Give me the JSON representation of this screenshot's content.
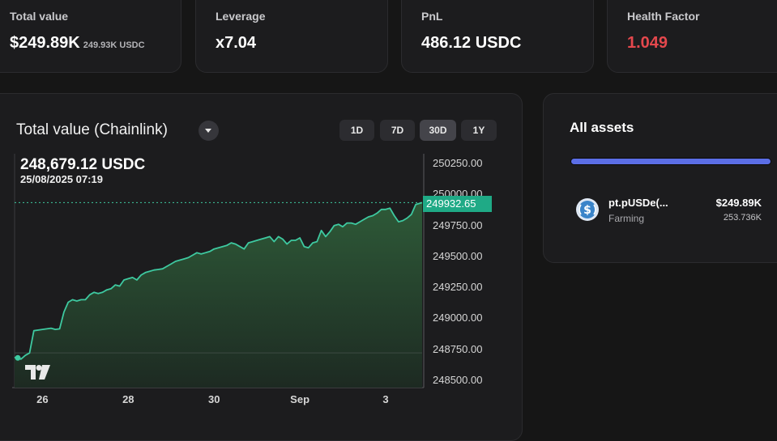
{
  "stats": {
    "total_value": {
      "label": "Total value",
      "value": "$249.89K",
      "sub": "249.93K USDC"
    },
    "leverage": {
      "label": "Leverage",
      "value": "x7.04"
    },
    "pnl": {
      "label": "PnL",
      "value": "486.12 USDC"
    },
    "health": {
      "label": "Health Factor",
      "value": "1.049",
      "color": "#e5484d"
    }
  },
  "chart_panel": {
    "title": "Total value (Chainlink)",
    "ranges": [
      "1D",
      "7D",
      "30D",
      "1Y"
    ],
    "active_range": "30D",
    "hover_value": "248,679.12 USDC",
    "hover_date": "25/08/2025 07:19",
    "current_price_tag": "249932.65"
  },
  "chart_data": {
    "type": "area",
    "ylim": [
      248440,
      250330
    ],
    "yticks": [
      "250250.00",
      "250000.00",
      "249750.00",
      "249500.00",
      "249250.00",
      "249000.00",
      "248750.00",
      "248500.00"
    ],
    "ytick_values": [
      250250,
      250000,
      249750,
      249500,
      249250,
      249000,
      248750,
      248500
    ],
    "xticks": [
      "26",
      "28",
      "30",
      "Sep",
      "3"
    ],
    "xtick_positions": [
      1,
      3,
      5,
      7,
      9
    ],
    "xlim": [
      0.35,
      9.85
    ],
    "baseline": 248720,
    "series": [
      {
        "values": [
          [
            0.35,
            248680
          ],
          [
            0.4,
            248690
          ],
          [
            0.5,
            248670
          ],
          [
            0.6,
            248700
          ],
          [
            0.7,
            248720
          ],
          [
            0.8,
            248900
          ],
          [
            1.0,
            248910
          ],
          [
            1.2,
            248920
          ],
          [
            1.3,
            248910
          ],
          [
            1.4,
            248915
          ],
          [
            1.5,
            249050
          ],
          [
            1.6,
            249130
          ],
          [
            1.7,
            249150
          ],
          [
            1.8,
            249140
          ],
          [
            1.9,
            249150
          ],
          [
            2.0,
            249150
          ],
          [
            2.1,
            249190
          ],
          [
            2.2,
            249210
          ],
          [
            2.3,
            249200
          ],
          [
            2.4,
            249210
          ],
          [
            2.5,
            249230
          ],
          [
            2.6,
            249240
          ],
          [
            2.7,
            249270
          ],
          [
            2.8,
            249260
          ],
          [
            2.9,
            249310
          ],
          [
            3.0,
            249320
          ],
          [
            3.1,
            249330
          ],
          [
            3.2,
            249310
          ],
          [
            3.3,
            249350
          ],
          [
            3.4,
            249370
          ],
          [
            3.5,
            249380
          ],
          [
            3.6,
            249390
          ],
          [
            3.7,
            249395
          ],
          [
            3.8,
            249400
          ],
          [
            3.9,
            249420
          ],
          [
            4.0,
            249440
          ],
          [
            4.1,
            249460
          ],
          [
            4.2,
            249470
          ],
          [
            4.3,
            249480
          ],
          [
            4.4,
            249490
          ],
          [
            4.5,
            249510
          ],
          [
            4.6,
            249530
          ],
          [
            4.7,
            249520
          ],
          [
            4.8,
            249530
          ],
          [
            4.9,
            249540
          ],
          [
            5.0,
            249560
          ],
          [
            5.1,
            249570
          ],
          [
            5.2,
            249580
          ],
          [
            5.3,
            249590
          ],
          [
            5.4,
            249610
          ],
          [
            5.5,
            249600
          ],
          [
            5.6,
            249580
          ],
          [
            5.7,
            249560
          ],
          [
            5.8,
            249610
          ],
          [
            5.9,
            249620
          ],
          [
            6.0,
            249630
          ],
          [
            6.1,
            249640
          ],
          [
            6.2,
            249650
          ],
          [
            6.3,
            249660
          ],
          [
            6.4,
            249620
          ],
          [
            6.5,
            249660
          ],
          [
            6.6,
            249640
          ],
          [
            6.7,
            249600
          ],
          [
            6.8,
            249630
          ],
          [
            6.9,
            249630
          ],
          [
            7.0,
            249650
          ],
          [
            7.1,
            249580
          ],
          [
            7.2,
            249570
          ],
          [
            7.3,
            249610
          ],
          [
            7.4,
            249620
          ],
          [
            7.5,
            249710
          ],
          [
            7.6,
            249660
          ],
          [
            7.7,
            249700
          ],
          [
            7.8,
            249750
          ],
          [
            7.9,
            249760
          ],
          [
            8.0,
            249740
          ],
          [
            8.1,
            249770
          ],
          [
            8.2,
            249770
          ],
          [
            8.3,
            249760
          ],
          [
            8.4,
            249780
          ],
          [
            8.5,
            249800
          ],
          [
            8.6,
            249820
          ],
          [
            8.7,
            249830
          ],
          [
            8.8,
            249850
          ],
          [
            8.9,
            249880
          ],
          [
            9.0,
            249880
          ],
          [
            9.1,
            249890
          ],
          [
            9.2,
            249830
          ],
          [
            9.3,
            249780
          ],
          [
            9.4,
            249790
          ],
          [
            9.5,
            249810
          ],
          [
            9.6,
            249840
          ],
          [
            9.7,
            249920
          ],
          [
            9.85,
            249935
          ]
        ]
      }
    ],
    "colors": {
      "line": "#3ec9a0",
      "fill_top": "#2e5a38",
      "fill_bottom": "#1d2a22",
      "tag": "#1faa86"
    }
  },
  "assets": {
    "title": "All assets",
    "items": [
      {
        "name": "pt.pUSDe(...",
        "category": "Farming",
        "value": "$249.89K",
        "amount": "253.736K",
        "icon": "usd-coin-icon"
      }
    ],
    "bar_color": "#5b6ee6"
  }
}
